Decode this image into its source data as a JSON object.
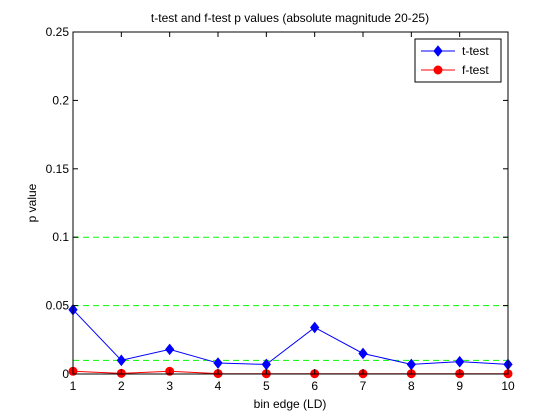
{
  "chart_data": {
    "type": "line",
    "title": "t-test and f-test p values (absolute magnitude 20-25)",
    "xlabel": "bin edge (LD)",
    "ylabel": "p value",
    "xlim": [
      1,
      10
    ],
    "ylim": [
      0,
      0.25
    ],
    "x": [
      1,
      2,
      3,
      4,
      5,
      6,
      7,
      8,
      9,
      10
    ],
    "xticks": [
      "1",
      "2",
      "3",
      "4",
      "5",
      "6",
      "7",
      "8",
      "9",
      "10"
    ],
    "yticks": [
      "0",
      "0.05",
      "0.1",
      "0.15",
      "0.2",
      "0.25"
    ],
    "ytick_values": [
      0,
      0.05,
      0.1,
      0.15,
      0.2,
      0.25
    ],
    "series": [
      {
        "name": "t-test",
        "color": "#0000ff",
        "marker": "diamond",
        "values": [
          0.047,
          0.01,
          0.018,
          0.008,
          0.007,
          0.034,
          0.015,
          0.007,
          0.009,
          0.007
        ]
      },
      {
        "name": "f-test",
        "color": "#ff0000",
        "marker": "circle",
        "values": [
          0.002,
          0.0005,
          0.002,
          0.0003,
          0.0002,
          0.0002,
          0.0002,
          0.0002,
          0.0002,
          0.0002
        ]
      }
    ],
    "reference_lines": [
      {
        "y": 0.1,
        "color": "#00ff00",
        "style": "dashed"
      },
      {
        "y": 0.05,
        "color": "#00ff00",
        "style": "dashed"
      },
      {
        "y": 0.01,
        "color": "#00ff00",
        "style": "dashed"
      }
    ],
    "legend_position": "top-right",
    "grid": false
  }
}
